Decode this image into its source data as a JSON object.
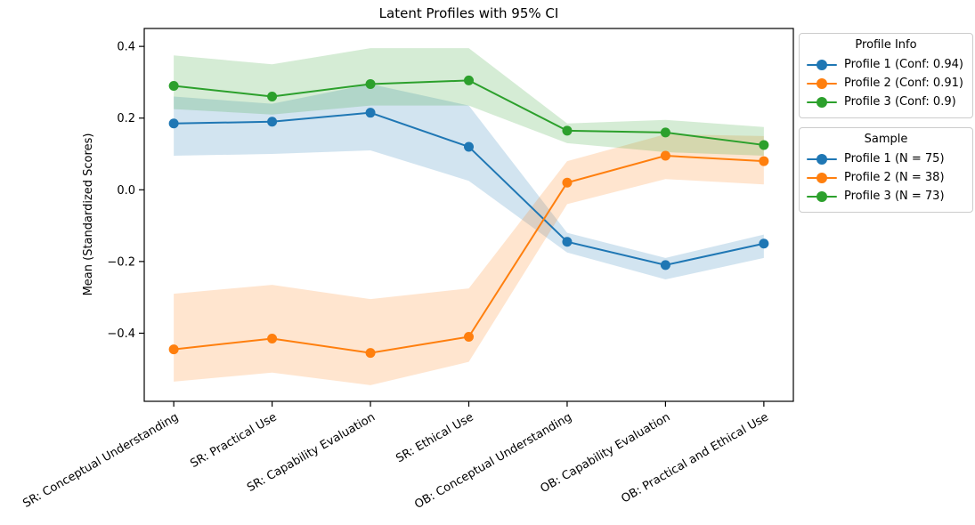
{
  "chart_data": {
    "type": "line",
    "title": "Latent Profiles with 95% CI",
    "xlabel": "",
    "ylabel": "Mean (Standardized Scores)",
    "grid": false,
    "band_alpha": 0.2,
    "categories": [
      "SR: Conceptual Understanding",
      "SR: Practical Use",
      "SR: Capability Evaluation",
      "SR: Ethical Use",
      "OB: Conceptual Understanding",
      "OB: Capability Evaluation",
      "OB: Practical and Ethical Use"
    ],
    "ylim": [
      -0.59,
      0.45
    ],
    "yticks": [
      0.4,
      0.2,
      0.0,
      -0.2,
      -0.4
    ],
    "series": [
      {
        "name": "Profile 1",
        "color": "#1f77b4",
        "values": [
          0.185,
          0.19,
          0.215,
          0.12,
          -0.145,
          -0.21,
          -0.15
        ],
        "ci_lower": [
          0.095,
          0.1,
          0.11,
          0.025,
          -0.175,
          -0.25,
          -0.19
        ],
        "ci_upper": [
          0.26,
          0.24,
          0.295,
          0.235,
          -0.12,
          -0.19,
          -0.125
        ]
      },
      {
        "name": "Profile 2",
        "color": "#ff7f0e",
        "values": [
          -0.445,
          -0.415,
          -0.455,
          -0.41,
          0.02,
          0.095,
          0.08
        ],
        "ci_lower": [
          -0.535,
          -0.51,
          -0.545,
          -0.48,
          -0.04,
          0.03,
          0.015
        ],
        "ci_upper": [
          -0.29,
          -0.265,
          -0.305,
          -0.275,
          0.08,
          0.155,
          0.15
        ]
      },
      {
        "name": "Profile 3",
        "color": "#2ca02c",
        "values": [
          0.29,
          0.26,
          0.295,
          0.305,
          0.165,
          0.16,
          0.125
        ],
        "ci_lower": [
          0.225,
          0.21,
          0.235,
          0.235,
          0.13,
          0.105,
          0.095
        ],
        "ci_upper": [
          0.375,
          0.35,
          0.395,
          0.395,
          0.185,
          0.195,
          0.175
        ]
      }
    ],
    "legends": [
      {
        "title": "Profile Info",
        "entries": [
          {
            "label": "Profile 1 (Conf: 0.94)",
            "color": "#1f77b4"
          },
          {
            "label": "Profile 2 (Conf: 0.91)",
            "color": "#ff7f0e"
          },
          {
            "label": "Profile 3 (Conf: 0.9)",
            "color": "#2ca02c"
          }
        ]
      },
      {
        "title": "Sample",
        "entries": [
          {
            "label": "Profile 1 (N = 75)",
            "color": "#1f77b4"
          },
          {
            "label": "Profile 2 (N = 38)",
            "color": "#ff7f0e"
          },
          {
            "label": "Profile 3 (N = 73)",
            "color": "#2ca02c"
          }
        ]
      }
    ]
  }
}
